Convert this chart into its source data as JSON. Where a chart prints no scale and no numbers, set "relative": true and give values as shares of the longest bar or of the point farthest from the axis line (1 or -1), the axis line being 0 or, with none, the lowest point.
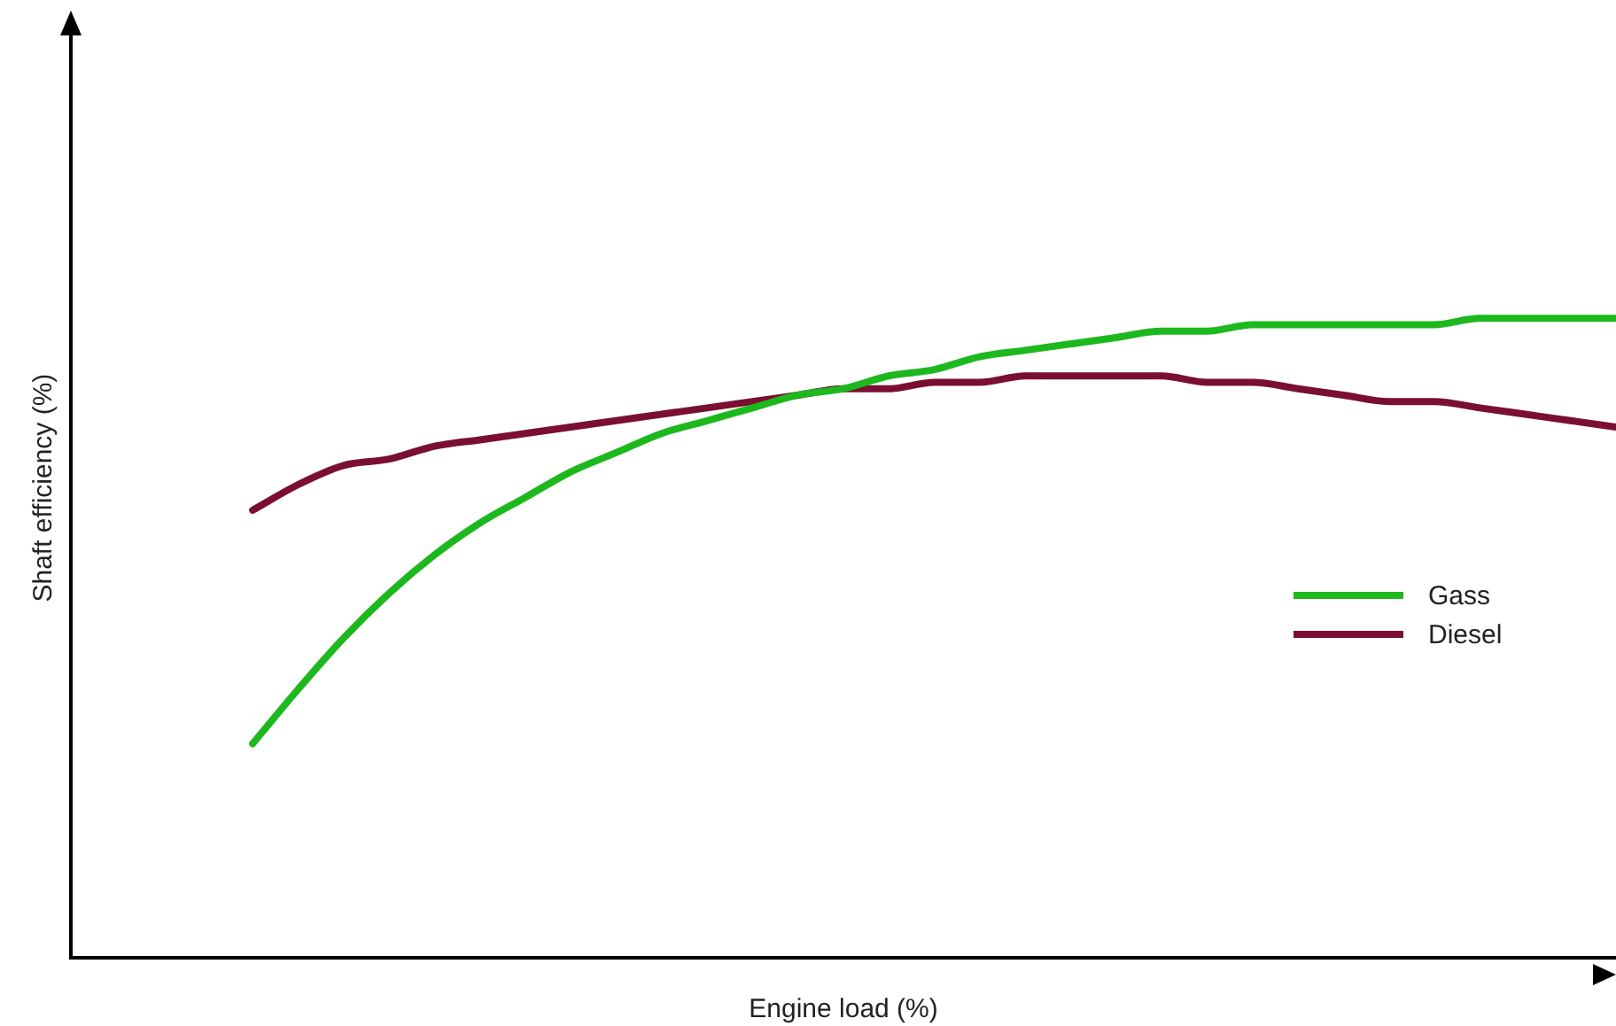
{
  "chart_data": {
    "type": "line",
    "relative": true,
    "xlabel": "Engine load (%)",
    "ylabel": "Shaft efficiency (%)",
    "grid": false,
    "legend": "right",
    "marker": "none",
    "line_style": "solid",
    "categories": [
      null,
      null,
      null,
      null,
      null,
      null,
      null,
      null,
      null,
      null,
      null,
      null,
      null,
      null,
      null,
      null,
      null,
      null,
      null,
      null,
      null,
      null,
      null,
      null,
      null,
      null,
      null,
      null,
      null,
      null,
      null,
      null,
      null,
      null,
      null
    ],
    "series": [
      {
        "name": "Gass",
        "color": "#1db81d",
        "values": [
          null,
          null,
          null,
          null,
          0.335,
          0.42,
          0.5,
          0.57,
          0.63,
          0.68,
          0.72,
          0.76,
          0.79,
          0.82,
          0.84,
          0.86,
          0.88,
          0.89,
          0.91,
          0.92,
          0.94,
          0.95,
          0.96,
          0.97,
          0.98,
          0.98,
          0.99,
          0.99,
          0.99,
          0.99,
          0.99,
          1,
          1,
          1,
          1
        ]
      },
      {
        "name": "Diesel",
        "color": "#7a0f32",
        "values": [
          null,
          null,
          null,
          null,
          0.7,
          0.74,
          0.77,
          0.78,
          0.8,
          0.81,
          0.82,
          0.83,
          0.84,
          0.85,
          0.86,
          0.87,
          0.88,
          0.89,
          0.89,
          0.9,
          0.9,
          0.91,
          0.91,
          0.91,
          0.91,
          0.9,
          0.9,
          0.89,
          0.88,
          0.87,
          0.87,
          0.86,
          0.85,
          0.84,
          0.83
        ]
      }
    ]
  }
}
